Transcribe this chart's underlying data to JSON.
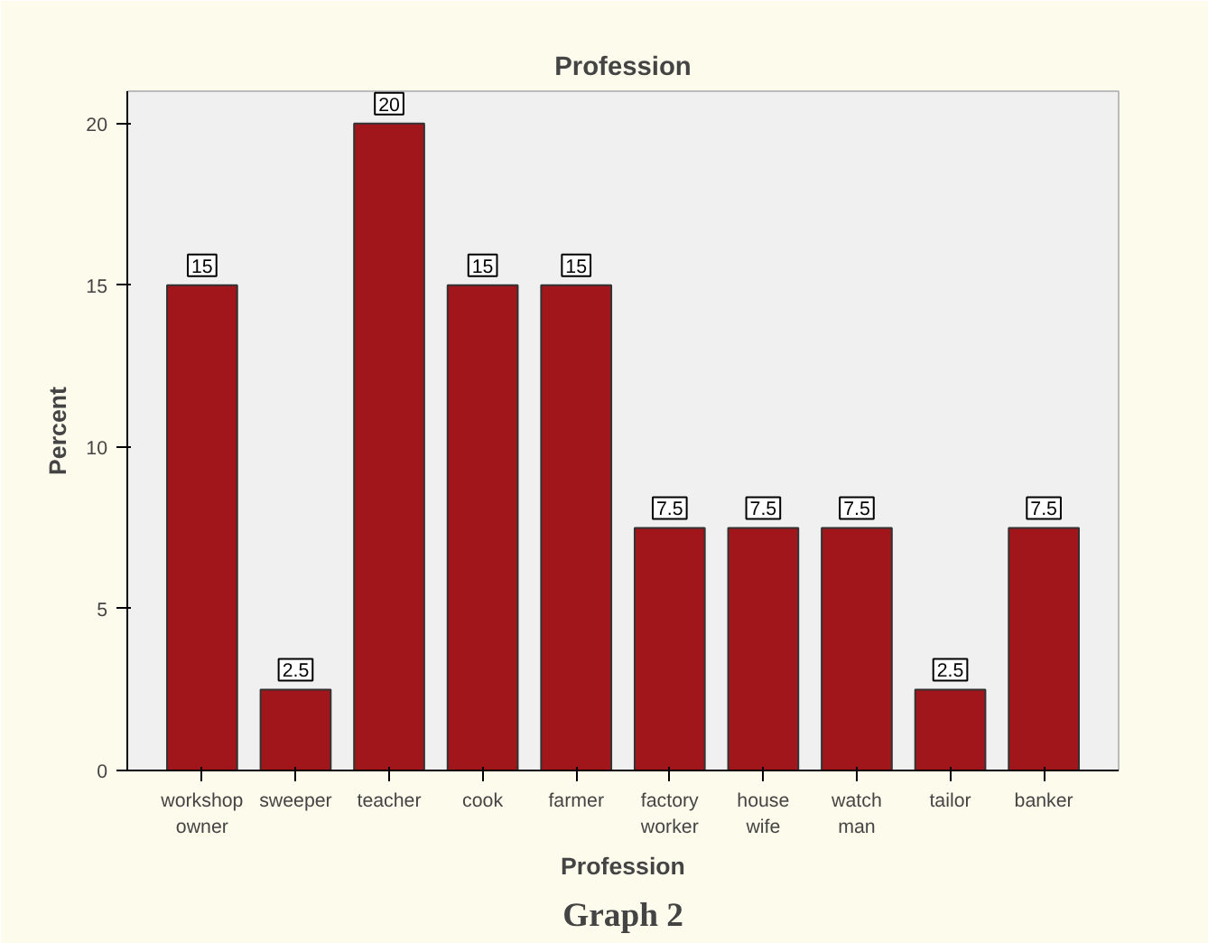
{
  "chart_data": {
    "type": "bar",
    "title": "Profession",
    "xlabel": "Profession",
    "ylabel": "Percent",
    "categories": [
      "workshop owner",
      "sweeper",
      "teacher",
      "cook",
      "farmer",
      "factory worker",
      "house wife",
      "watch man",
      "tailor",
      "banker"
    ],
    "values": [
      15,
      2.5,
      20,
      15,
      15,
      7.5,
      7.5,
      7.5,
      2.5,
      7.5
    ],
    "color": "#a0161b",
    "ylim": [
      0,
      21
    ],
    "yticks": [
      0,
      5,
      10,
      15,
      20
    ],
    "data_labels": true,
    "grid": false,
    "annotations": [
      "Graph 2"
    ]
  }
}
